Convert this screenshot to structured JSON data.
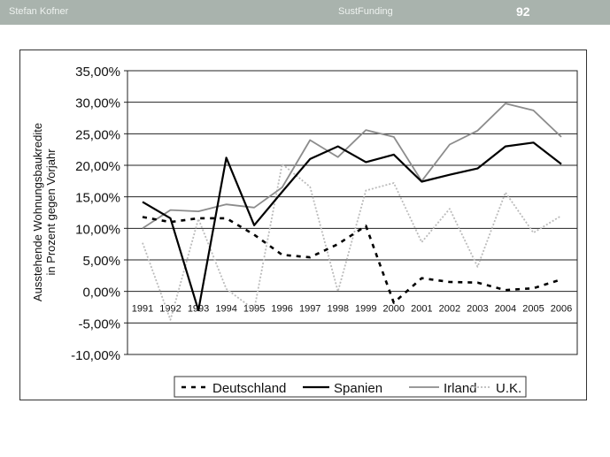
{
  "header": {
    "author": "Stefan Kofner",
    "project": "SustFunding",
    "page_number": "92"
  },
  "chart_data": {
    "type": "line",
    "title": "",
    "xlabel": "",
    "ylabel": "Ausstehende Wohnungsbaukredite in Prozent gegen Vorjahr",
    "ylabel_lines": [
      "Ausstehende Wohnungsbaukredite",
      "in Prozent gegen Vorjahr"
    ],
    "ylim": [
      -10,
      35
    ],
    "yticks": [
      35,
      30,
      25,
      20,
      15,
      10,
      5,
      0,
      -5,
      -10
    ],
    "ytick_labels": [
      "35,00%",
      "30,00%",
      "25,00%",
      "20,00%",
      "15,00%",
      "10,00%",
      "5,00%",
      "0,00%",
      "-5,00%",
      "-10,00%"
    ],
    "categories": [
      "1991",
      "1992",
      "1993",
      "1994",
      "1995",
      "1996",
      "1997",
      "1998",
      "1999",
      "2000",
      "2001",
      "2002",
      "2003",
      "2004",
      "2005",
      "2006"
    ],
    "grid": true,
    "legend_position": "bottom",
    "series": [
      {
        "name": "Deutschland",
        "color": "#000000",
        "style": "dashed-bold",
        "values": [
          11.8,
          11.0,
          11.6,
          11.6,
          9.0,
          5.8,
          5.4,
          7.5,
          10.4,
          -1.8,
          2.1,
          1.5,
          1.4,
          0.2,
          0.5,
          1.9
        ]
      },
      {
        "name": "Spanien",
        "color": "#000000",
        "style": "solid-bold",
        "values": [
          14.2,
          11.6,
          -3.0,
          21.2,
          10.5,
          15.8,
          21.0,
          23.0,
          20.5,
          21.7,
          17.4,
          18.5,
          19.5,
          23.0,
          23.6,
          20.2
        ]
      },
      {
        "name": "Irland",
        "color": "#8c8c8c",
        "style": "solid",
        "values": [
          10.0,
          12.9,
          12.7,
          13.8,
          13.3,
          16.5,
          24.0,
          21.3,
          25.6,
          24.5,
          17.5,
          23.3,
          25.5,
          29.8,
          28.7,
          24.5
        ]
      },
      {
        "name": "U.K.",
        "color": "#bbbbbb",
        "style": "dotted",
        "values": [
          7.7,
          -4.5,
          11.5,
          0.4,
          -2.9,
          20.2,
          16.6,
          0.0,
          16.0,
          17.2,
          7.8,
          13.1,
          3.9,
          15.7,
          9.3,
          12.0
        ]
      }
    ]
  }
}
